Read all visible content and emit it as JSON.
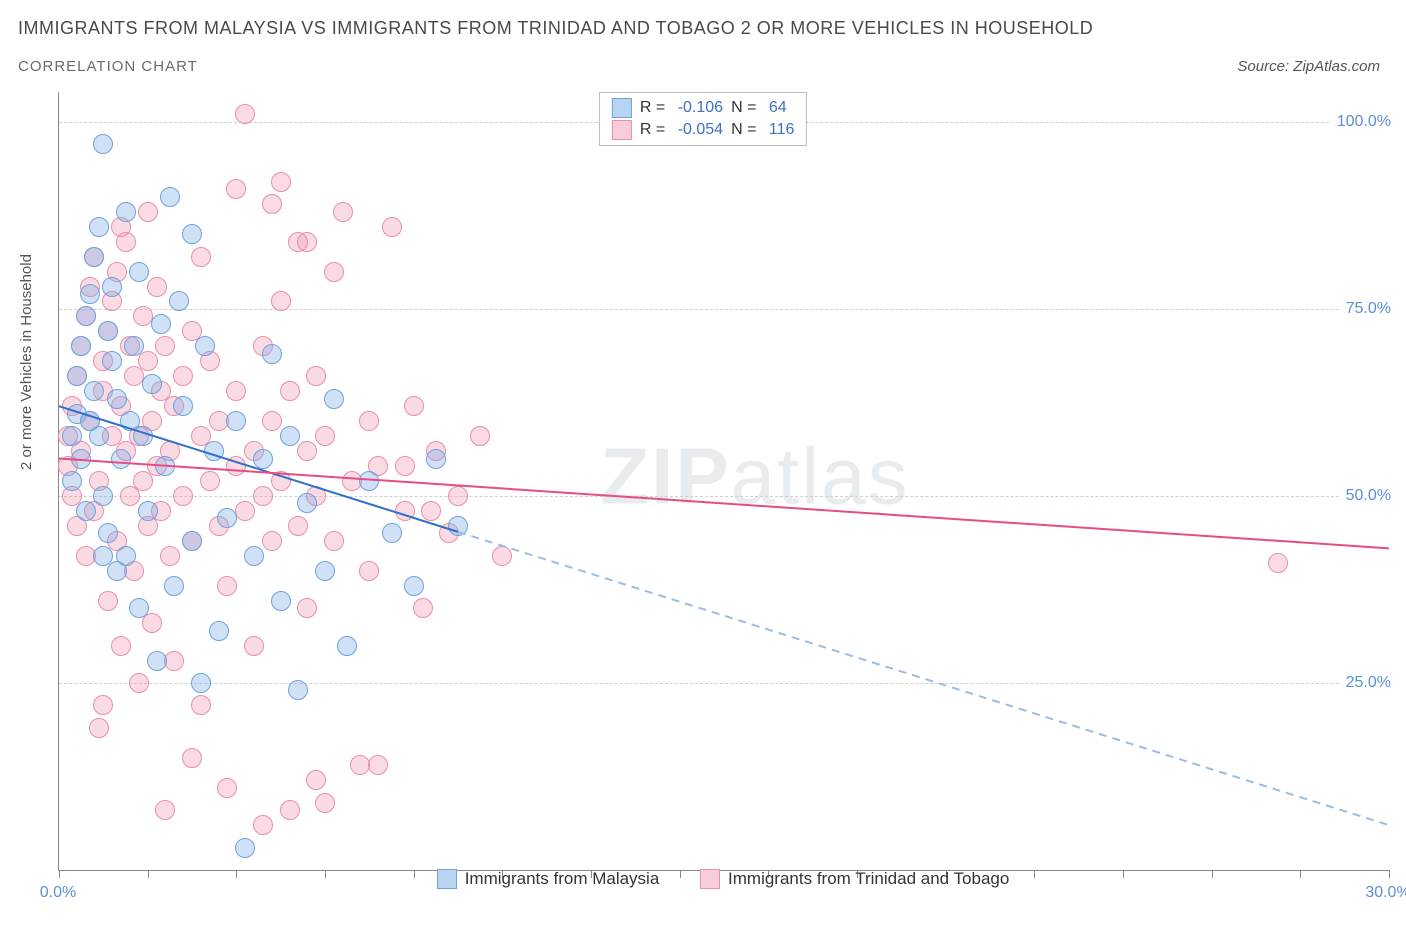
{
  "title": "IMMIGRANTS FROM MALAYSIA VS IMMIGRANTS FROM TRINIDAD AND TOBAGO 2 OR MORE VEHICLES IN HOUSEHOLD",
  "subtitle": "CORRELATION CHART",
  "source_label": "Source: ",
  "source_name": "ZipAtlas.com",
  "y_axis_title": "2 or more Vehicles in Household",
  "watermark_a": "ZIP",
  "watermark_b": "atlas",
  "chart": {
    "type": "scatter",
    "xlim": [
      0,
      30
    ],
    "ylim": [
      0,
      104
    ],
    "x_ticks": [
      0,
      2,
      4,
      6,
      8,
      10,
      12,
      14,
      16,
      18,
      20,
      22,
      24,
      26,
      28,
      30
    ],
    "x_tick_labels": {
      "0": "0.0%",
      "30": "30.0%"
    },
    "y_gridlines": [
      25,
      50,
      75,
      100
    ],
    "y_tick_labels": {
      "25": "25.0%",
      "50": "50.0%",
      "75": "75.0%",
      "100": "100.0%"
    },
    "background_color": "#ffffff",
    "grid_color": "#d0d0d0",
    "axis_color": "#888888",
    "tick_label_color": "#5b8fd6",
    "point_radius": 9,
    "point_border_width": 1.5
  },
  "series": {
    "malaysia": {
      "label": "Immigrants from Malaysia",
      "fill": "rgba(120,170,230,0.35)",
      "stroke": "#6fa3dd",
      "swatch_fill": "#b9d4f0",
      "swatch_border": "#6fa3dd",
      "R": "-0.106",
      "N": "64",
      "trend": {
        "x1": 0,
        "y1": 62,
        "x2": 30,
        "y2": 6,
        "solid_until_x": 9,
        "color_solid": "#2e6fc9",
        "color_dash": "#9ebce0",
        "width": 2
      },
      "points": [
        [
          0.3,
          52
        ],
        [
          0.3,
          58
        ],
        [
          0.4,
          61
        ],
        [
          0.4,
          66
        ],
        [
          0.5,
          55
        ],
        [
          0.5,
          70
        ],
        [
          0.6,
          48
        ],
        [
          0.6,
          74
        ],
        [
          0.7,
          60
        ],
        [
          0.7,
          77
        ],
        [
          0.8,
          64
        ],
        [
          0.8,
          82
        ],
        [
          0.9,
          58
        ],
        [
          0.9,
          86
        ],
        [
          1.0,
          50
        ],
        [
          1.0,
          97
        ],
        [
          1.1,
          45
        ],
        [
          1.1,
          72
        ],
        [
          1.2,
          68
        ],
        [
          1.2,
          78
        ],
        [
          1.3,
          40
        ],
        [
          1.3,
          63
        ],
        [
          1.4,
          55
        ],
        [
          1.5,
          88
        ],
        [
          1.5,
          42
        ],
        [
          1.6,
          60
        ],
        [
          1.7,
          70
        ],
        [
          1.8,
          35
        ],
        [
          1.8,
          80
        ],
        [
          1.9,
          58
        ],
        [
          2.0,
          48
        ],
        [
          2.1,
          65
        ],
        [
          2.2,
          28
        ],
        [
          2.3,
          73
        ],
        [
          2.4,
          54
        ],
        [
          2.5,
          90
        ],
        [
          2.6,
          38
        ],
        [
          2.8,
          62
        ],
        [
          3.0,
          44
        ],
        [
          3.0,
          85
        ],
        [
          3.2,
          25
        ],
        [
          3.3,
          70
        ],
        [
          3.5,
          56
        ],
        [
          3.6,
          32
        ],
        [
          3.8,
          47
        ],
        [
          4.0,
          60
        ],
        [
          4.2,
          3
        ],
        [
          4.4,
          42
        ],
        [
          4.6,
          55
        ],
        [
          5.0,
          36
        ],
        [
          5.2,
          58
        ],
        [
          5.4,
          24
        ],
        [
          5.6,
          49
        ],
        [
          6.0,
          40
        ],
        [
          6.2,
          63
        ],
        [
          6.5,
          30
        ],
        [
          7.0,
          52
        ],
        [
          7.5,
          45
        ],
        [
          8.0,
          38
        ],
        [
          8.5,
          55
        ],
        [
          9.0,
          46
        ],
        [
          4.8,
          69
        ],
        [
          2.7,
          76
        ],
        [
          1.0,
          42
        ]
      ]
    },
    "trinidad": {
      "label": "Immigrants from Trinidad and Tobago",
      "fill": "rgba(240,150,175,0.35)",
      "stroke": "#e890ab",
      "swatch_fill": "#f7cdd9",
      "swatch_border": "#e890ab",
      "R": "-0.054",
      "N": "116",
      "trend": {
        "x1": 0,
        "y1": 55,
        "x2": 30,
        "y2": 43,
        "color": "#e64d85",
        "width": 2
      },
      "points": [
        [
          0.2,
          54
        ],
        [
          0.2,
          58
        ],
        [
          0.3,
          50
        ],
        [
          0.3,
          62
        ],
        [
          0.4,
          46
        ],
        [
          0.4,
          66
        ],
        [
          0.5,
          56
        ],
        [
          0.5,
          70
        ],
        [
          0.6,
          42
        ],
        [
          0.6,
          74
        ],
        [
          0.7,
          60
        ],
        [
          0.7,
          78
        ],
        [
          0.8,
          48
        ],
        [
          0.8,
          82
        ],
        [
          0.9,
          52
        ],
        [
          0.9,
          19
        ],
        [
          1.0,
          64
        ],
        [
          1.0,
          68
        ],
        [
          1.1,
          36
        ],
        [
          1.1,
          72
        ],
        [
          1.2,
          58
        ],
        [
          1.2,
          76
        ],
        [
          1.3,
          44
        ],
        [
          1.3,
          80
        ],
        [
          1.4,
          62
        ],
        [
          1.4,
          30
        ],
        [
          1.5,
          56
        ],
        [
          1.5,
          84
        ],
        [
          1.6,
          50
        ],
        [
          1.6,
          70
        ],
        [
          1.7,
          40
        ],
        [
          1.7,
          66
        ],
        [
          1.8,
          58
        ],
        [
          1.8,
          25
        ],
        [
          1.9,
          52
        ],
        [
          1.9,
          74
        ],
        [
          2.0,
          46
        ],
        [
          2.0,
          68
        ],
        [
          2.1,
          60
        ],
        [
          2.1,
          33
        ],
        [
          2.2,
          54
        ],
        [
          2.2,
          78
        ],
        [
          2.3,
          48
        ],
        [
          2.3,
          64
        ],
        [
          2.4,
          8
        ],
        [
          2.4,
          70
        ],
        [
          2.5,
          56
        ],
        [
          2.5,
          42
        ],
        [
          2.6,
          62
        ],
        [
          2.6,
          28
        ],
        [
          2.8,
          50
        ],
        [
          2.8,
          66
        ],
        [
          3.0,
          44
        ],
        [
          3.0,
          72
        ],
        [
          3.2,
          58
        ],
        [
          3.2,
          22
        ],
        [
          3.4,
          52
        ],
        [
          3.4,
          68
        ],
        [
          3.6,
          46
        ],
        [
          3.6,
          60
        ],
        [
          3.8,
          38
        ],
        [
          3.8,
          11
        ],
        [
          4.0,
          54
        ],
        [
          4.0,
          64
        ],
        [
          4.2,
          48
        ],
        [
          4.2,
          101
        ],
        [
          4.4,
          56
        ],
        [
          4.4,
          30
        ],
        [
          4.6,
          50
        ],
        [
          4.6,
          70
        ],
        [
          4.8,
          44
        ],
        [
          4.8,
          60
        ],
        [
          5.0,
          92
        ],
        [
          5.0,
          52
        ],
        [
          5.2,
          8
        ],
        [
          5.2,
          64
        ],
        [
          5.4,
          46
        ],
        [
          5.4,
          84
        ],
        [
          5.6,
          56
        ],
        [
          5.6,
          35
        ],
        [
          5.8,
          50
        ],
        [
          5.8,
          66
        ],
        [
          6.0,
          9
        ],
        [
          6.0,
          58
        ],
        [
          6.2,
          44
        ],
        [
          6.4,
          88
        ],
        [
          6.6,
          52
        ],
        [
          6.8,
          14
        ],
        [
          7.0,
          60
        ],
        [
          7.0,
          40
        ],
        [
          7.2,
          54
        ],
        [
          7.5,
          86
        ],
        [
          7.8,
          48
        ],
        [
          8.0,
          62
        ],
        [
          8.2,
          35
        ],
        [
          8.5,
          56
        ],
        [
          8.8,
          45
        ],
        [
          9.0,
          50
        ],
        [
          9.5,
          58
        ],
        [
          10.0,
          42
        ],
        [
          4.0,
          91
        ],
        [
          4.8,
          89
        ],
        [
          5.6,
          84
        ],
        [
          3.2,
          82
        ],
        [
          2.0,
          88
        ],
        [
          1.4,
          86
        ],
        [
          6.2,
          80
        ],
        [
          5.0,
          76
        ],
        [
          5.8,
          12
        ],
        [
          7.2,
          14
        ],
        [
          7.8,
          54
        ],
        [
          8.4,
          48
        ],
        [
          4.6,
          6
        ],
        [
          3.0,
          15
        ],
        [
          27.5,
          41
        ],
        [
          1.0,
          22
        ]
      ]
    }
  },
  "legend_top": {
    "r_label": "R = ",
    "n_label": "N = "
  }
}
